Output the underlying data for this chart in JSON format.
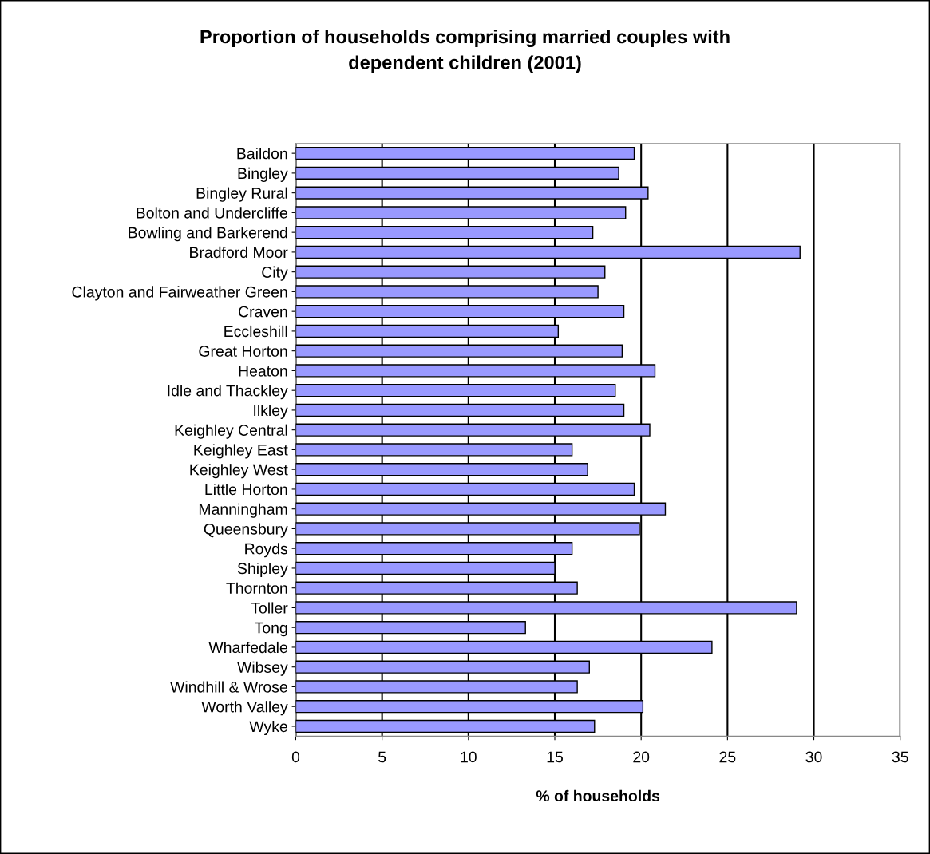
{
  "chart_data": {
    "type": "bar",
    "orientation": "horizontal",
    "title": "Proportion of households comprising married couples with\ndependent children (2001)",
    "xlabel": "% of households",
    "categories": [
      "Baildon",
      "Bingley",
      "Bingley Rural",
      "Bolton and Undercliffe",
      "Bowling and Barkerend",
      "Bradford Moor",
      "City",
      "Clayton and Fairweather Green",
      "Craven",
      "Eccleshill",
      "Great Horton",
      "Heaton",
      "Idle and Thackley",
      "Ilkley",
      "Keighley Central",
      "Keighley East",
      "Keighley West",
      "Little Horton",
      "Manningham",
      "Queensbury",
      "Royds",
      "Shipley",
      "Thornton",
      "Toller",
      "Tong",
      "Wharfedale",
      "Wibsey",
      "Windhill & Wrose",
      "Worth Valley",
      "Wyke"
    ],
    "values": [
      19.6,
      18.7,
      20.4,
      19.1,
      17.2,
      29.2,
      17.9,
      17.5,
      19.0,
      15.2,
      18.9,
      20.8,
      18.5,
      19.0,
      20.5,
      16.0,
      16.9,
      19.6,
      21.4,
      19.9,
      16.0,
      15.0,
      16.3,
      29.0,
      13.3,
      24.1,
      17.0,
      16.3,
      20.1,
      17.3
    ],
    "color": "#9999ff",
    "xlim": [
      0,
      35
    ],
    "xticks": [
      0,
      5,
      10,
      15,
      20,
      25,
      30,
      35
    ],
    "grid": "x",
    "legend": false
  }
}
